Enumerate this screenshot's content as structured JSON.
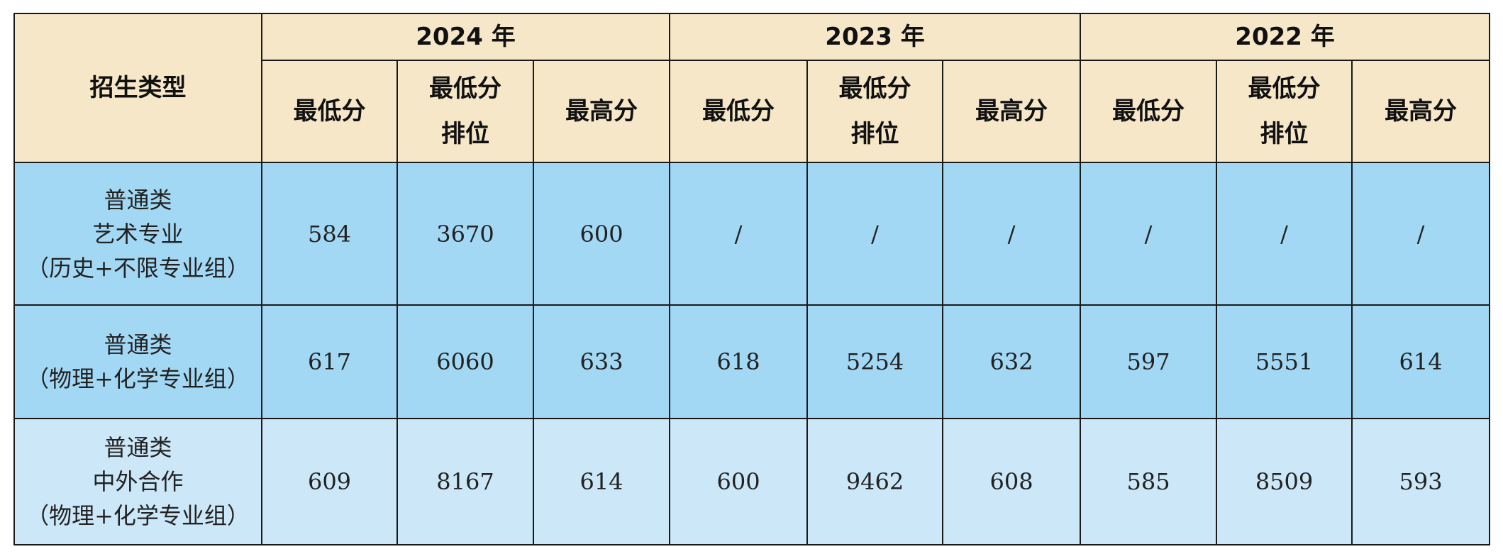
{
  "table": {
    "category_header": "招生类型",
    "years": [
      {
        "label": "2024 年",
        "columns": [
          [
            "最低分"
          ],
          [
            "最低分",
            "排位"
          ],
          [
            "最高分"
          ]
        ]
      },
      {
        "label": "2023 年",
        "columns": [
          [
            "最低分"
          ],
          [
            "最低分",
            "排位"
          ],
          [
            "最高分"
          ]
        ]
      },
      {
        "label": "2022 年",
        "columns": [
          [
            "最低分"
          ],
          [
            "最低分",
            "排位"
          ],
          [
            "最高分"
          ]
        ]
      }
    ],
    "rows": [
      {
        "type": [
          "普通类",
          "艺术专业",
          "（历史+不限专业组）"
        ],
        "cells": [
          584,
          3670,
          600,
          "/",
          "/",
          "/",
          "/",
          "/",
          "/"
        ]
      },
      {
        "type": [
          "普通类",
          "（物理+化学专业组）"
        ],
        "cells": [
          617,
          6060,
          633,
          618,
          5254,
          632,
          597,
          5551,
          614
        ]
      },
      {
        "type": [
          "普通类",
          "中外合作",
          "（物理+化学专业组）"
        ],
        "cells": [
          609,
          8167,
          614,
          600,
          9462,
          608,
          585,
          8509,
          593
        ]
      }
    ]
  }
}
